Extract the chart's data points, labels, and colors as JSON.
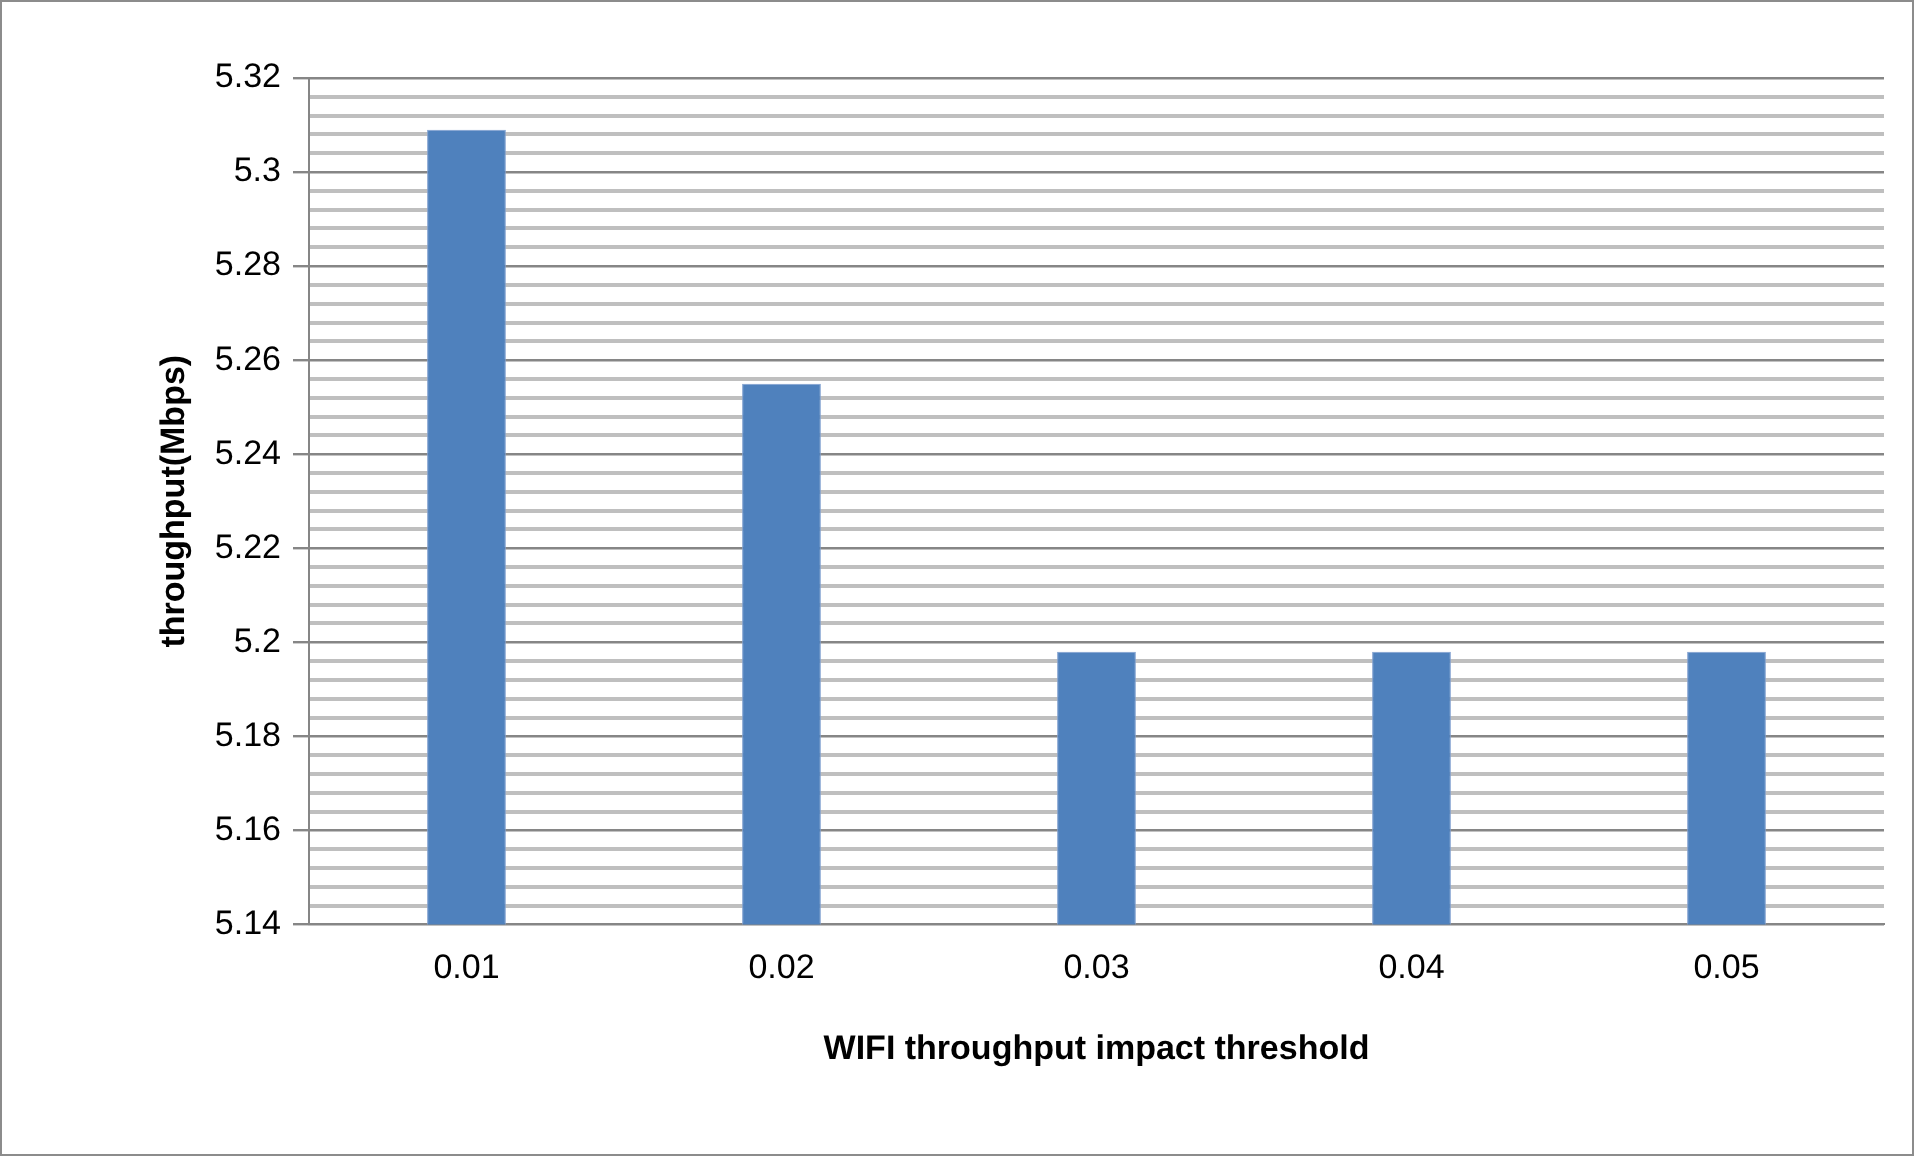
{
  "chart_data": {
    "type": "bar",
    "xlabel": "WIFI throughput impact threshold",
    "ylabel": "throughput(Mbps)",
    "categories": [
      "0.01",
      "0.02",
      "0.03",
      "0.04",
      "0.05"
    ],
    "series": [
      {
        "color": "#4f81bd",
        "values": [
          5.309,
          5.255,
          5.198,
          5.198,
          5.198
        ]
      }
    ],
    "ylim": [
      5.14,
      5.32
    ],
    "yticks": [
      5.14,
      {
        "value": 5.144,
        "label": null
      },
      {
        "value": 5.148,
        "label": null
      },
      {
        "value": 5.152,
        "label": null
      },
      {
        "value": 5.156,
        "label": null
      },
      5.16,
      {
        "value": 5.164,
        "label": null
      },
      {
        "value": 5.168,
        "label": null
      },
      {
        "value": 5.172,
        "label": null
      },
      {
        "value": 5.176,
        "label": null
      },
      5.18,
      {
        "value": 5.184,
        "label": null
      },
      {
        "value": 5.188,
        "label": null
      },
      {
        "value": 5.192,
        "label": null
      },
      {
        "value": 5.196,
        "label": null
      },
      5.2,
      {
        "value": 5.204,
        "label": null
      },
      {
        "value": 5.208,
        "label": null
      },
      {
        "value": 5.212,
        "label": null
      },
      {
        "value": 5.216,
        "label": null
      },
      5.22,
      {
        "value": 5.224,
        "label": null
      },
      {
        "value": 5.228,
        "label": null
      },
      {
        "value": 5.232,
        "label": null
      },
      {
        "value": 5.236,
        "label": null
      },
      5.24,
      {
        "value": 5.244,
        "label": null
      },
      {
        "value": 5.248,
        "label": null
      },
      {
        "value": 5.252,
        "label": null
      },
      {
        "value": 5.256,
        "label": null
      },
      5.26,
      {
        "value": 5.264,
        "label": null
      },
      {
        "value": 5.268,
        "label": null
      },
      {
        "value": 5.272,
        "label": null
      },
      {
        "value": 5.276,
        "label": null
      },
      5.28,
      {
        "value": 5.284,
        "label": null
      },
      {
        "value": 5.288,
        "label": null
      },
      {
        "value": 5.292,
        "label": null
      },
      {
        "value": 5.296,
        "label": null
      },
      5.3,
      {
        "value": 5.304,
        "label": null
      },
      {
        "value": 5.308,
        "label": null
      },
      {
        "value": 5.312,
        "label": null
      },
      {
        "value": 5.316,
        "label": null
      },
      5.32
    ],
    "grid": "y",
    "legend": false
  }
}
